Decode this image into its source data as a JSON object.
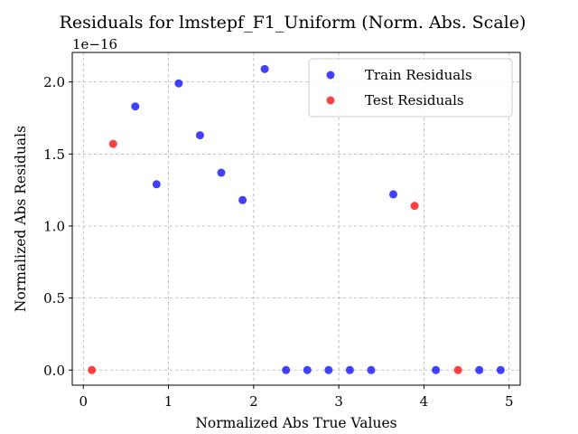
{
  "chart_data": {
    "type": "scatter",
    "title": "Residuals for lmstepf_F1_Uniform (Norm. Abs. Scale)",
    "xlabel": "Normalized Abs True Values",
    "ylabel": "Normalized Abs Residuals",
    "y_offset_label": "1e−16",
    "xlim": [
      -0.13,
      5.13
    ],
    "ylim": [
      -0.105,
      2.205
    ],
    "x_ticks": [
      0,
      1,
      2,
      3,
      4,
      5
    ],
    "x_tick_labels": [
      "0",
      "1",
      "2",
      "3",
      "4",
      "5"
    ],
    "y_ticks": [
      0.0,
      0.5,
      1.0,
      1.5,
      2.0
    ],
    "y_tick_labels": [
      "0.0",
      "0.5",
      "1.0",
      "1.5",
      "2.0"
    ],
    "grid": true,
    "legend_position": "top-right",
    "series": [
      {
        "name": "Train Residuals",
        "color": "#0000ff",
        "points": [
          [
            0.61,
            1.83
          ],
          [
            0.86,
            1.29
          ],
          [
            1.12,
            1.99
          ],
          [
            1.37,
            1.63
          ],
          [
            1.62,
            1.37
          ],
          [
            1.87,
            1.18
          ],
          [
            2.13,
            2.09
          ],
          [
            2.38,
            0.0
          ],
          [
            2.63,
            0.0
          ],
          [
            2.88,
            0.0
          ],
          [
            3.13,
            0.0
          ],
          [
            3.38,
            0.0
          ],
          [
            3.64,
            1.22
          ],
          [
            4.14,
            0.0
          ],
          [
            4.65,
            0.0
          ],
          [
            4.9,
            0.0
          ]
        ]
      },
      {
        "name": "Test Residuals",
        "color": "#ff0000",
        "points": [
          [
            0.1,
            0.0
          ],
          [
            0.35,
            1.57
          ],
          [
            3.89,
            1.14
          ],
          [
            4.4,
            0.0
          ]
        ]
      }
    ]
  }
}
